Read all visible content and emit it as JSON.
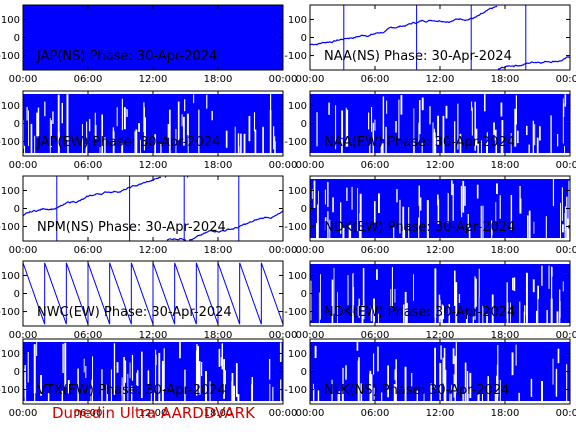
{
  "footer": "Dunedin Ultra AARDDVARK",
  "colors": {
    "signal": "#0000ff",
    "axes": "#000000",
    "footer": "#d40000"
  },
  "chart_data": [
    {
      "type": "line",
      "title": "JAP(NS) Phase: 30-Apr-2024",
      "x_ticks": [
        "00:00",
        "06:00",
        "12:00",
        "18:00",
        "00:00"
      ],
      "y_ticks": [
        100,
        0,
        -100
      ],
      "ylim": [
        -180,
        180
      ],
      "trace": "dense-full"
    },
    {
      "type": "line",
      "title": "NAA(NS) Phase: 30-Apr-2024",
      "x_ticks": [
        "00:00",
        "06:00",
        "12:00",
        "18:00",
        "00:00"
      ],
      "y_ticks": [
        100,
        0,
        -100
      ],
      "ylim": [
        -180,
        180
      ],
      "trace": "drift-wraps"
    },
    {
      "type": "line",
      "title": "JAP(EW) Phase: 30-Apr-2024",
      "x_ticks": [
        "00:00",
        "06:00",
        "12:00",
        "18:00",
        "00:00"
      ],
      "y_ticks": [
        100,
        0,
        -100
      ],
      "ylim": [
        -180,
        180
      ],
      "trace": "dense-gaps"
    },
    {
      "type": "line",
      "title": "NAA(EW) Phase: 30-Apr-2024",
      "x_ticks": [
        "00:00",
        "06:00",
        "12:00",
        "18:00",
        "00:00"
      ],
      "y_ticks": [
        100,
        0,
        -100
      ],
      "ylim": [
        -180,
        180
      ],
      "trace": "dense-gaps"
    },
    {
      "type": "line",
      "title": "NPM(NS) Phase: 30-Apr-2024",
      "x_ticks": [
        "00:00",
        "06:00",
        "12:00",
        "18:00",
        "00:00"
      ],
      "y_ticks": [
        100,
        0,
        -100
      ],
      "ylim": [
        -180,
        180
      ],
      "trace": "drift-wraps"
    },
    {
      "type": "line",
      "title": "NDK(EW) Phase: 30-Apr-2024",
      "x_ticks": [
        "00:00",
        "06:00",
        "12:00",
        "18:00",
        "00:00"
      ],
      "y_ticks": [
        100,
        0,
        -100
      ],
      "ylim": [
        -180,
        180
      ],
      "trace": "dense-gaps"
    },
    {
      "type": "line",
      "title": "NWC(EW) Phase: 30-Apr-2024",
      "x_ticks": [
        "00:00",
        "06:00",
        "12:00",
        "18:00",
        "00:00"
      ],
      "y_ticks": [
        100,
        0,
        -100
      ],
      "ylim": [
        -180,
        180
      ],
      "trace": "sawtooth"
    },
    {
      "type": "line",
      "title": "NDK(EW) Phase: 30-Apr-2024",
      "x_ticks": [
        "00:00",
        "06:00",
        "12:00",
        "18:00",
        "00:00"
      ],
      "y_ticks": [
        100,
        0,
        -100
      ],
      "ylim": [
        -180,
        180
      ],
      "trace": "dense-gaps"
    },
    {
      "type": "line",
      "title": "VTX(EW) Phase: 30-Apr-2024",
      "x_ticks": [
        "00:00",
        "06:00",
        "12:00",
        "18:00",
        "00:00"
      ],
      "y_ticks": [
        100,
        0,
        -100
      ],
      "ylim": [
        -180,
        180
      ],
      "trace": "dense-gaps"
    },
    {
      "type": "line",
      "title": "NLK(NS) Phase: 30-Apr-2024",
      "x_ticks": [
        "00:00",
        "06:00",
        "12:00",
        "18:00",
        "00:00"
      ],
      "y_ticks": [
        100,
        0,
        -100
      ],
      "ylim": [
        -180,
        180
      ],
      "trace": "dense-gaps"
    }
  ]
}
